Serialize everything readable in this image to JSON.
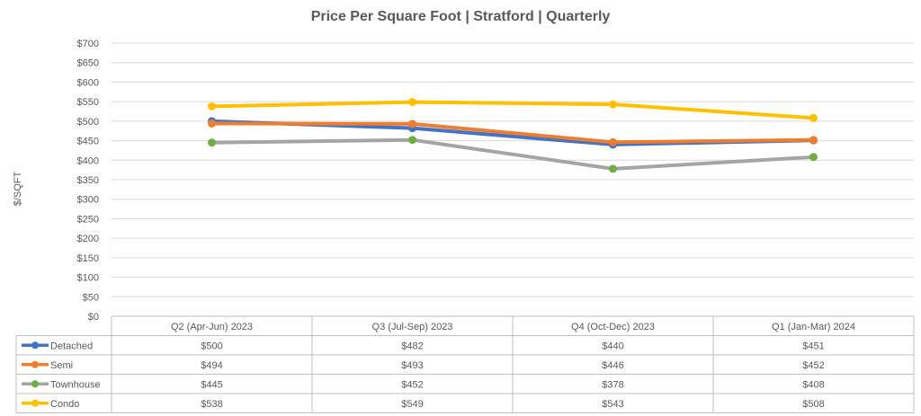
{
  "chart_data": {
    "type": "line",
    "title": "Price Per Square Foot | Stratford | Quarterly",
    "ylabel": "$/SQFT",
    "xlabel": "",
    "ylim": [
      0,
      700
    ],
    "yticks": [
      "$0",
      "$50",
      "$100",
      "$150",
      "$200",
      "$250",
      "$300",
      "$350",
      "$400",
      "$450",
      "$500",
      "$550",
      "$600",
      "$650",
      "$700"
    ],
    "grid": true,
    "legend": "data-table",
    "categories": [
      "Q2 (Apr-Jun) 2023",
      "Q3 (Jul-Sep) 2023",
      "Q4 (Oct-Dec) 2023",
      "Q1 (Jan-Mar) 2024"
    ],
    "series": [
      {
        "name": "Detached",
        "color": "#4472C4",
        "values": [
          500,
          482,
          440,
          451
        ],
        "labels": [
          "$500",
          "$482",
          "$440",
          "$451"
        ]
      },
      {
        "name": "Semi",
        "color": "#ED7D31",
        "values": [
          494,
          493,
          446,
          452
        ],
        "labels": [
          "$494",
          "$493",
          "$446",
          "$452"
        ]
      },
      {
        "name": "Townhouse",
        "color": "#A5A5A5",
        "marker_color": "#70AD47",
        "values": [
          445,
          452,
          378,
          408
        ],
        "labels": [
          "$445",
          "$452",
          "$378",
          "$408"
        ]
      },
      {
        "name": "Condo",
        "color": "#FFC000",
        "values": [
          538,
          549,
          543,
          508
        ],
        "labels": [
          "$538",
          "$549",
          "$543",
          "$508"
        ]
      }
    ]
  }
}
